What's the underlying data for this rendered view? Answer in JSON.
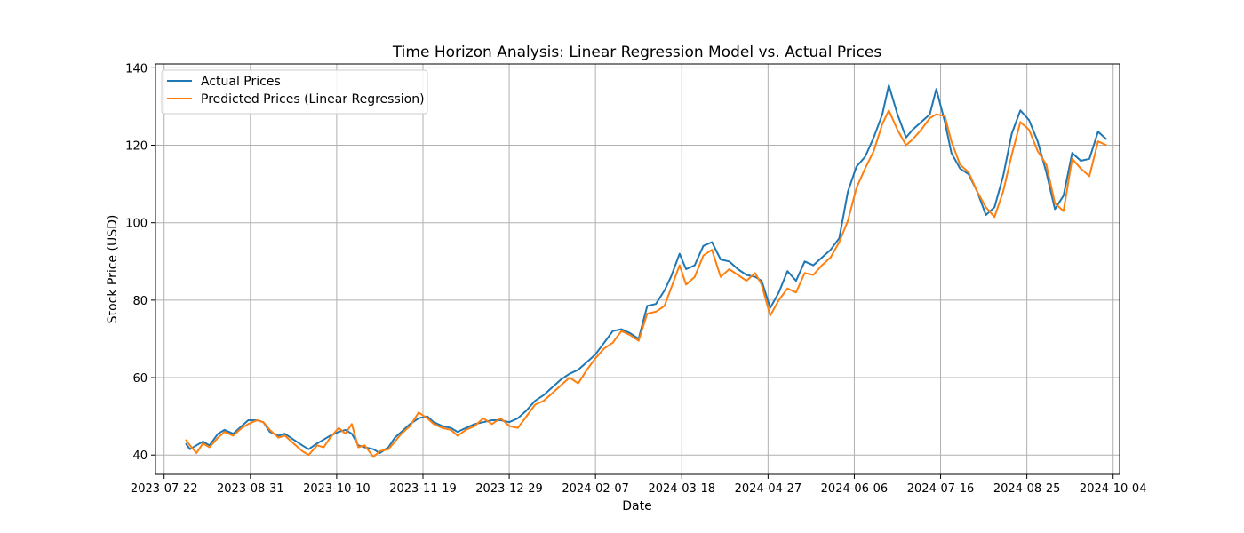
{
  "chart_data": {
    "type": "line",
    "title": "Time Horizon Analysis: Linear Regression Model vs. Actual Prices",
    "xlabel": "Date",
    "ylabel": "Stock Price (USD)",
    "x_range": [
      "2023-07-18",
      "2024-10-07"
    ],
    "ylim": [
      35,
      141
    ],
    "grid": true,
    "legend_position": "upper-left",
    "x_ticks": [
      "2023-07-22",
      "2023-08-31",
      "2023-10-10",
      "2023-11-19",
      "2023-12-29",
      "2024-02-07",
      "2024-03-18",
      "2024-04-27",
      "2024-06-06",
      "2024-07-16",
      "2024-08-25",
      "2024-10-04"
    ],
    "y_ticks": [
      40,
      60,
      80,
      100,
      120,
      140
    ],
    "series": [
      {
        "name": "Actual Prices",
        "color": "#1f77b4",
        "points": [
          [
            "2023-08-01",
            43.0
          ],
          [
            "2023-08-03",
            41.5
          ],
          [
            "2023-08-06",
            42.5
          ],
          [
            "2023-08-09",
            43.5
          ],
          [
            "2023-08-12",
            42.5
          ],
          [
            "2023-08-16",
            45.5
          ],
          [
            "2023-08-19",
            46.5
          ],
          [
            "2023-08-23",
            45.5
          ],
          [
            "2023-08-27",
            47.5
          ],
          [
            "2023-08-30",
            49.0
          ],
          [
            "2023-09-03",
            49.0
          ],
          [
            "2023-09-06",
            48.5
          ],
          [
            "2023-09-09",
            46.0
          ],
          [
            "2023-09-13",
            45.0
          ],
          [
            "2023-09-16",
            45.5
          ],
          [
            "2023-09-20",
            44.0
          ],
          [
            "2023-09-24",
            42.5
          ],
          [
            "2023-09-27",
            41.5
          ],
          [
            "2023-10-01",
            43.0
          ],
          [
            "2023-10-04",
            44.0
          ],
          [
            "2023-10-07",
            45.0
          ],
          [
            "2023-10-11",
            46.0
          ],
          [
            "2023-10-14",
            46.5
          ],
          [
            "2023-10-17",
            45.5
          ],
          [
            "2023-10-20",
            42.5
          ],
          [
            "2023-10-23",
            42.0
          ],
          [
            "2023-10-27",
            41.5
          ],
          [
            "2023-10-30",
            40.5
          ],
          [
            "2023-11-03",
            42.0
          ],
          [
            "2023-11-06",
            44.5
          ],
          [
            "2023-11-09",
            46.0
          ],
          [
            "2023-11-13",
            48.0
          ],
          [
            "2023-11-17",
            49.5
          ],
          [
            "2023-11-21",
            50.0
          ],
          [
            "2023-11-24",
            48.5
          ],
          [
            "2023-11-28",
            47.5
          ],
          [
            "2023-12-02",
            47.0
          ],
          [
            "2023-12-05",
            46.0
          ],
          [
            "2023-12-09",
            47.0
          ],
          [
            "2023-12-13",
            48.0
          ],
          [
            "2023-12-17",
            48.5
          ],
          [
            "2023-12-21",
            49.0
          ],
          [
            "2023-12-25",
            49.0
          ],
          [
            "2023-12-29",
            48.5
          ],
          [
            "2024-01-02",
            49.5
          ],
          [
            "2024-01-06",
            51.5
          ],
          [
            "2024-01-10",
            54.0
          ],
          [
            "2024-01-14",
            55.5
          ],
          [
            "2024-01-18",
            57.5
          ],
          [
            "2024-01-22",
            59.5
          ],
          [
            "2024-01-26",
            61.0
          ],
          [
            "2024-01-30",
            62.0
          ],
          [
            "2024-02-03",
            64.0
          ],
          [
            "2024-02-07",
            66.0
          ],
          [
            "2024-02-11",
            69.0
          ],
          [
            "2024-02-15",
            72.0
          ],
          [
            "2024-02-19",
            72.5
          ],
          [
            "2024-02-23",
            71.5
          ],
          [
            "2024-02-27",
            70.0
          ],
          [
            "2024-03-02",
            78.5
          ],
          [
            "2024-03-06",
            79.0
          ],
          [
            "2024-03-10",
            82.5
          ],
          [
            "2024-03-13",
            86.0
          ],
          [
            "2024-03-17",
            92.0
          ],
          [
            "2024-03-20",
            88.0
          ],
          [
            "2024-03-24",
            89.0
          ],
          [
            "2024-03-28",
            94.0
          ],
          [
            "2024-04-01",
            95.0
          ],
          [
            "2024-04-05",
            90.5
          ],
          [
            "2024-04-09",
            90.0
          ],
          [
            "2024-04-13",
            88.0
          ],
          [
            "2024-04-17",
            86.5
          ],
          [
            "2024-04-21",
            86.0
          ],
          [
            "2024-04-24",
            85.0
          ],
          [
            "2024-04-28",
            78.0
          ],
          [
            "2024-05-02",
            82.0
          ],
          [
            "2024-05-06",
            87.5
          ],
          [
            "2024-05-10",
            85.0
          ],
          [
            "2024-05-14",
            90.0
          ],
          [
            "2024-05-18",
            89.0
          ],
          [
            "2024-05-22",
            91.0
          ],
          [
            "2024-05-26",
            93.0
          ],
          [
            "2024-05-30",
            96.0
          ],
          [
            "2024-06-03",
            108.0
          ],
          [
            "2024-06-07",
            114.5
          ],
          [
            "2024-06-11",
            117.0
          ],
          [
            "2024-06-15",
            122.0
          ],
          [
            "2024-06-19",
            128.0
          ],
          [
            "2024-06-22",
            135.5
          ],
          [
            "2024-06-26",
            128.0
          ],
          [
            "2024-06-30",
            122.0
          ],
          [
            "2024-07-03",
            124.0
          ],
          [
            "2024-07-07",
            126.0
          ],
          [
            "2024-07-11",
            128.0
          ],
          [
            "2024-07-14",
            134.5
          ],
          [
            "2024-07-18",
            126.0
          ],
          [
            "2024-07-21",
            118.0
          ],
          [
            "2024-07-25",
            114.0
          ],
          [
            "2024-07-29",
            112.5
          ],
          [
            "2024-08-02",
            108.0
          ],
          [
            "2024-08-06",
            102.0
          ],
          [
            "2024-08-10",
            104.0
          ],
          [
            "2024-08-14",
            112.0
          ],
          [
            "2024-08-18",
            123.0
          ],
          [
            "2024-08-22",
            129.0
          ],
          [
            "2024-08-26",
            126.5
          ],
          [
            "2024-08-30",
            121.0
          ],
          [
            "2024-09-03",
            113.0
          ],
          [
            "2024-09-07",
            103.5
          ],
          [
            "2024-09-11",
            107.0
          ],
          [
            "2024-09-15",
            118.0
          ],
          [
            "2024-09-19",
            116.0
          ],
          [
            "2024-09-23",
            116.5
          ],
          [
            "2024-09-27",
            123.5
          ],
          [
            "2024-10-01",
            121.5
          ]
        ]
      },
      {
        "name": "Predicted Prices (Linear Regression)",
        "color": "#ff7f0e",
        "points": [
          [
            "2023-08-01",
            44.0
          ],
          [
            "2023-08-03",
            42.5
          ],
          [
            "2023-08-06",
            40.5
          ],
          [
            "2023-08-09",
            43.0
          ],
          [
            "2023-08-12",
            42.0
          ],
          [
            "2023-08-16",
            44.5
          ],
          [
            "2023-08-19",
            46.0
          ],
          [
            "2023-08-23",
            45.0
          ],
          [
            "2023-08-27",
            47.0
          ],
          [
            "2023-08-30",
            48.0
          ],
          [
            "2023-09-03",
            49.0
          ],
          [
            "2023-09-06",
            48.5
          ],
          [
            "2023-09-09",
            46.5
          ],
          [
            "2023-09-13",
            44.5
          ],
          [
            "2023-09-16",
            45.0
          ],
          [
            "2023-09-20",
            43.0
          ],
          [
            "2023-09-24",
            41.0
          ],
          [
            "2023-09-27",
            40.0
          ],
          [
            "2023-10-01",
            42.5
          ],
          [
            "2023-10-04",
            42.0
          ],
          [
            "2023-10-07",
            44.5
          ],
          [
            "2023-10-11",
            47.0
          ],
          [
            "2023-10-14",
            45.5
          ],
          [
            "2023-10-17",
            48.0
          ],
          [
            "2023-10-20",
            42.0
          ],
          [
            "2023-10-23",
            42.5
          ],
          [
            "2023-10-27",
            39.5
          ],
          [
            "2023-10-30",
            41.0
          ],
          [
            "2023-11-03",
            41.5
          ],
          [
            "2023-11-06",
            43.5
          ],
          [
            "2023-11-09",
            45.5
          ],
          [
            "2023-11-13",
            47.5
          ],
          [
            "2023-11-17",
            51.0
          ],
          [
            "2023-11-21",
            49.5
          ],
          [
            "2023-11-24",
            48.0
          ],
          [
            "2023-11-28",
            47.0
          ],
          [
            "2023-12-02",
            46.5
          ],
          [
            "2023-12-05",
            45.0
          ],
          [
            "2023-12-09",
            46.5
          ],
          [
            "2023-12-13",
            47.5
          ],
          [
            "2023-12-17",
            49.5
          ],
          [
            "2023-12-21",
            48.0
          ],
          [
            "2023-12-25",
            49.5
          ],
          [
            "2023-12-29",
            47.5
          ],
          [
            "2024-01-02",
            47.0
          ],
          [
            "2024-01-06",
            50.0
          ],
          [
            "2024-01-10",
            53.0
          ],
          [
            "2024-01-14",
            54.0
          ],
          [
            "2024-01-18",
            56.0
          ],
          [
            "2024-01-22",
            58.0
          ],
          [
            "2024-01-26",
            60.0
          ],
          [
            "2024-01-30",
            58.5
          ],
          [
            "2024-02-03",
            62.0
          ],
          [
            "2024-02-07",
            65.0
          ],
          [
            "2024-02-11",
            67.5
          ],
          [
            "2024-02-15",
            69.0
          ],
          [
            "2024-02-19",
            72.0
          ],
          [
            "2024-02-23",
            71.0
          ],
          [
            "2024-02-27",
            69.5
          ],
          [
            "2024-03-02",
            76.5
          ],
          [
            "2024-03-06",
            77.0
          ],
          [
            "2024-03-10",
            78.5
          ],
          [
            "2024-03-13",
            83.0
          ],
          [
            "2024-03-17",
            89.0
          ],
          [
            "2024-03-20",
            84.0
          ],
          [
            "2024-03-24",
            86.0
          ],
          [
            "2024-03-28",
            91.5
          ],
          [
            "2024-04-01",
            93.0
          ],
          [
            "2024-04-05",
            86.0
          ],
          [
            "2024-04-09",
            88.0
          ],
          [
            "2024-04-13",
            86.5
          ],
          [
            "2024-04-17",
            85.0
          ],
          [
            "2024-04-21",
            87.0
          ],
          [
            "2024-04-24",
            84.0
          ],
          [
            "2024-04-28",
            76.0
          ],
          [
            "2024-05-02",
            80.0
          ],
          [
            "2024-05-06",
            83.0
          ],
          [
            "2024-05-10",
            82.0
          ],
          [
            "2024-05-14",
            87.0
          ],
          [
            "2024-05-18",
            86.5
          ],
          [
            "2024-05-22",
            89.0
          ],
          [
            "2024-05-26",
            91.0
          ],
          [
            "2024-05-30",
            95.0
          ],
          [
            "2024-06-03",
            100.5
          ],
          [
            "2024-06-07",
            109.0
          ],
          [
            "2024-06-11",
            114.0
          ],
          [
            "2024-06-15",
            118.5
          ],
          [
            "2024-06-19",
            125.5
          ],
          [
            "2024-06-22",
            129.0
          ],
          [
            "2024-06-26",
            124.0
          ],
          [
            "2024-06-30",
            120.0
          ],
          [
            "2024-07-03",
            121.5
          ],
          [
            "2024-07-07",
            124.0
          ],
          [
            "2024-07-11",
            127.0
          ],
          [
            "2024-07-14",
            128.0
          ],
          [
            "2024-07-18",
            127.5
          ],
          [
            "2024-07-21",
            121.0
          ],
          [
            "2024-07-25",
            115.0
          ],
          [
            "2024-07-29",
            113.0
          ],
          [
            "2024-08-02",
            108.0
          ],
          [
            "2024-08-06",
            104.0
          ],
          [
            "2024-08-10",
            101.5
          ],
          [
            "2024-08-14",
            108.0
          ],
          [
            "2024-08-18",
            117.5
          ],
          [
            "2024-08-22",
            126.0
          ],
          [
            "2024-08-26",
            124.0
          ],
          [
            "2024-08-30",
            118.5
          ],
          [
            "2024-09-03",
            115.0
          ],
          [
            "2024-09-07",
            105.0
          ],
          [
            "2024-09-11",
            103.0
          ],
          [
            "2024-09-15",
            116.5
          ],
          [
            "2024-09-19",
            114.0
          ],
          [
            "2024-09-23",
            112.0
          ],
          [
            "2024-09-27",
            121.0
          ],
          [
            "2024-10-01",
            120.0
          ]
        ]
      }
    ]
  }
}
